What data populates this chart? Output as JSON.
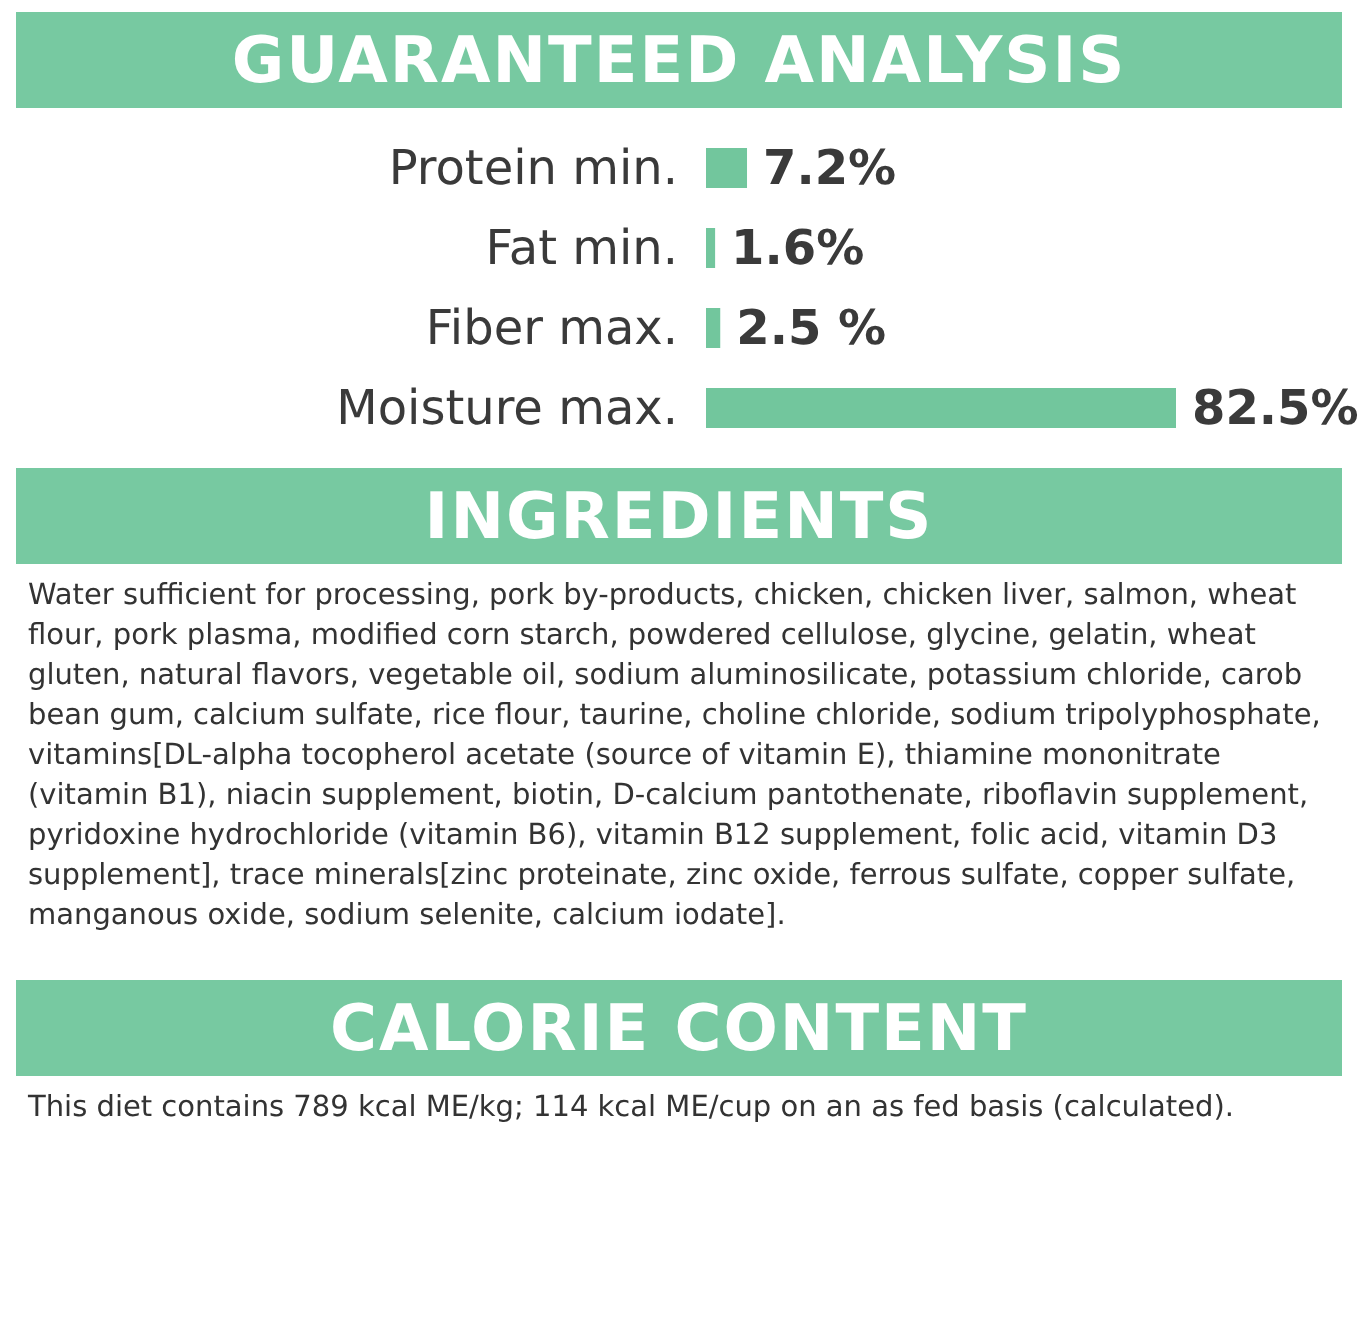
{
  "chart_data": {
    "type": "bar",
    "orientation": "horizontal",
    "title": "GUARANTEED ANALYSIS",
    "categories": [
      "Protein min.",
      "Fat min.",
      "Fiber max.",
      "Moisture max."
    ],
    "values": [
      7.2,
      1.6,
      2.5,
      82.5
    ],
    "value_labels": [
      "7.2%",
      "1.6%",
      "2.5 %",
      "82.5%"
    ],
    "color": "#72c69d",
    "annotations": [
      "INGREDIENTS",
      "Water sufficient for processing, pork by-products, chicken, chicken liver, salmon, wheat flour, pork plasma, modified corn starch, powdered cellulose, glycine, gelatin, wheat gluten, natural flavors, vegetable oil, sodium aluminosilicate, potassium chloride, carob bean gum, calcium sulfate, rice flour, taurine, choline chloride, sodium tripolyphosphate, vitamins[DL-alpha tocopherol acetate (source of vitamin E), thiamine mononitrate (vitamin B1), niacin supplement, biotin, D-calcium pantothenate, riboflavin supplement, pyridoxine hydrochloride (vitamin B6), vitamin B12 supplement, folic acid, vitamin D3 supplement], trace minerals[zinc proteinate, zinc oxide, ferrous sulfate, copper sulfate, manganous oxide, sodium selenite, calcium iodate].",
      "CALORIE CONTENT",
      "This diet contains 789 kcal ME/kg; 114 kcal ME/cup on an as fed basis (calculated)."
    ]
  }
}
